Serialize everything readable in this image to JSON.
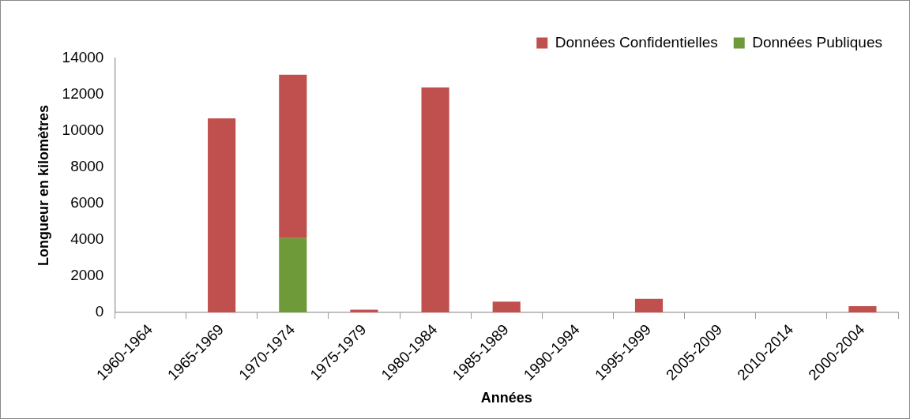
{
  "chart_data": {
    "type": "bar",
    "xlabel": "Années",
    "ylabel": "Longueur en kilomètres",
    "categories": [
      "1960-1964",
      "1965-1969",
      "1970-1974",
      "1975-1979",
      "1980-1984",
      "1985-1989",
      "1990-1994",
      "1995-1999",
      "2005-2009",
      "2010-2014",
      "2000-2004"
    ],
    "stacked": true,
    "series": [
      {
        "name": "Données Publiques",
        "color": "#6f9a3a",
        "values": [
          0,
          0,
          4100,
          0,
          0,
          0,
          0,
          0,
          0,
          0,
          0
        ]
      },
      {
        "name": "Données Confidentielles",
        "color": "#c0504d",
        "values": [
          0,
          10700,
          9000,
          150,
          12400,
          600,
          0,
          750,
          0,
          0,
          350
        ]
      }
    ],
    "ylim": [
      0,
      14000
    ],
    "yticks": [
      0,
      2000,
      4000,
      6000,
      8000,
      10000,
      12000,
      14000
    ],
    "grid": false,
    "legend": "top right"
  }
}
